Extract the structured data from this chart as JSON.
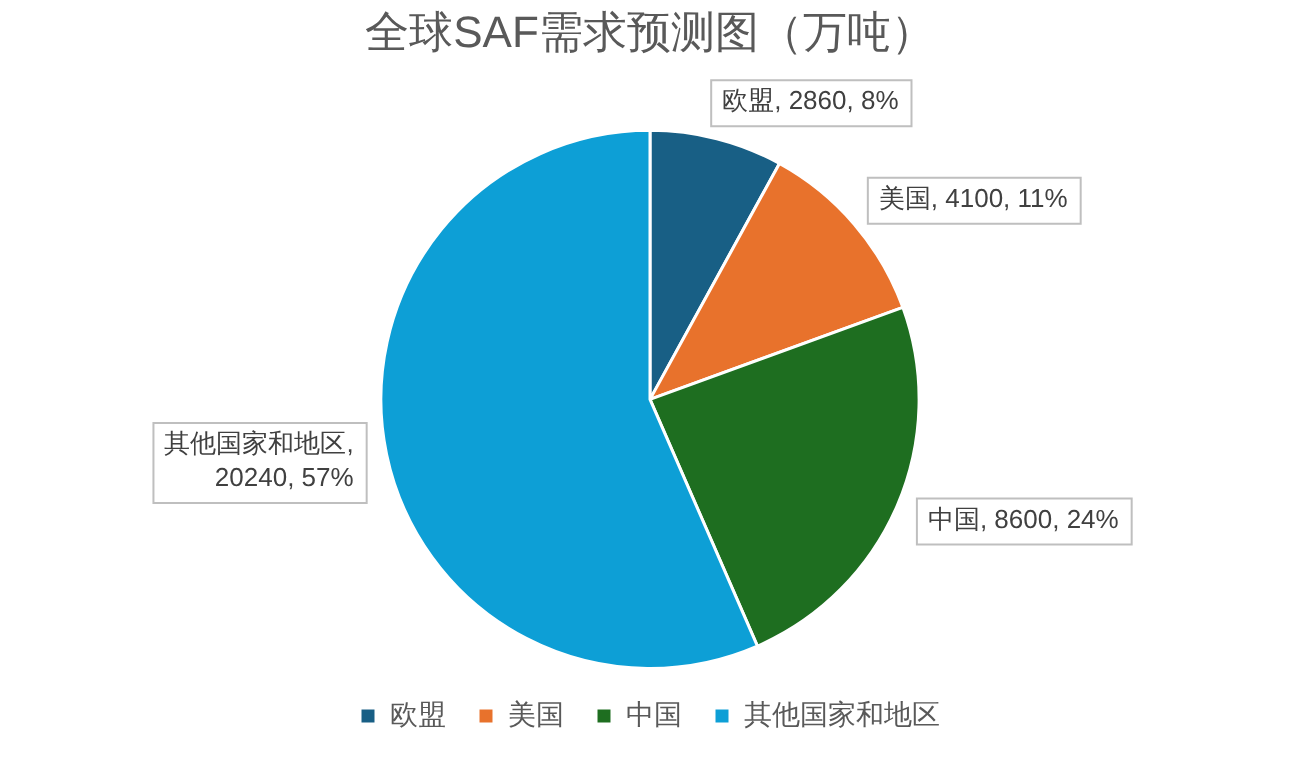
{
  "chart_data": {
    "type": "pie",
    "title": "全球SAF需求预测图（万吨）",
    "categories": [
      "欧盟",
      "美国",
      "中国",
      "其他国家和地区"
    ],
    "values": [
      2860,
      4100,
      8600,
      20240
    ],
    "colors": [
      "#185f85",
      "#e8722c",
      "#1e6e20",
      "#0d9fd6"
    ],
    "value_labels": [
      "欧盟, 2860, 8%",
      "美国, 4100, 11%",
      "中国, 8600, 24%",
      "其他国家和地区, 20240, 57%"
    ],
    "legend": "bottom"
  }
}
